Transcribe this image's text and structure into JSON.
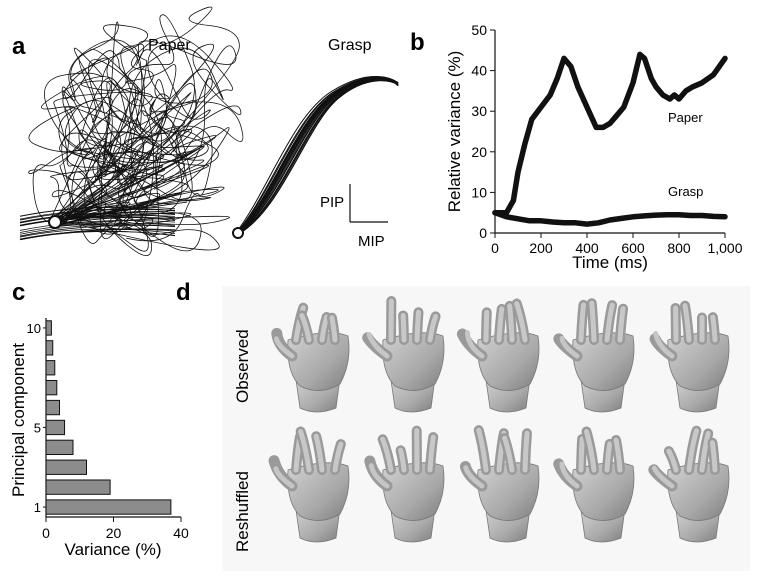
{
  "panels": {
    "a": {
      "letter": "a",
      "left_title": "Paper",
      "right_title": "Grasp",
      "scale_y_label": "PIP",
      "scale_x_label": "MIP"
    },
    "b": {
      "letter": "b"
    },
    "c": {
      "letter": "c"
    },
    "d": {
      "letter": "d",
      "row_labels": [
        "Observed",
        "Reshuffled"
      ],
      "columns": 5
    }
  },
  "chart_data": [
    {
      "panel": "b",
      "type": "line",
      "xlabel": "Time (ms)",
      "ylabel": "Relative variance (%)",
      "xlim": [
        0,
        1000
      ],
      "ylim": [
        0,
        50
      ],
      "xticks": [
        0,
        200,
        400,
        600,
        800,
        1000
      ],
      "xtick_labels": [
        "0",
        "200",
        "400",
        "600",
        "800",
        "1,000"
      ],
      "yticks": [
        0,
        10,
        20,
        30,
        40,
        50
      ],
      "grid": false,
      "series": [
        {
          "name": "Paper",
          "x": [
            0,
            50,
            80,
            100,
            130,
            160,
            200,
            240,
            270,
            300,
            330,
            360,
            400,
            440,
            470,
            500,
            530,
            560,
            600,
            630,
            650,
            680,
            700,
            730,
            760,
            780,
            800,
            830,
            860,
            900,
            950,
            1000
          ],
          "y": [
            5,
            5,
            8,
            15,
            22,
            28,
            31,
            34,
            38,
            43,
            41,
            36,
            31,
            26,
            26,
            27,
            29,
            31,
            37,
            44,
            43,
            38,
            36,
            34,
            33,
            34,
            33,
            35,
            36,
            37,
            39,
            43
          ]
        },
        {
          "name": "Grasp",
          "x": [
            0,
            50,
            100,
            150,
            200,
            250,
            300,
            350,
            400,
            450,
            500,
            550,
            600,
            650,
            700,
            750,
            800,
            850,
            900,
            950,
            1000
          ],
          "y": [
            5,
            4,
            3.5,
            3,
            3,
            2.7,
            2.5,
            2.5,
            2.2,
            2.5,
            3.2,
            3.6,
            4,
            4.2,
            4.4,
            4.5,
            4.5,
            4.3,
            4.3,
            4.1,
            4
          ]
        }
      ]
    },
    {
      "panel": "c",
      "type": "bar",
      "orientation": "horizontal",
      "xlabel": "Variance (%)",
      "ylabel": "Principal component",
      "xlim": [
        0,
        40
      ],
      "xticks": [
        0,
        20,
        40
      ],
      "ytick_labels": [
        "1",
        "5",
        "10"
      ],
      "categories": [
        1,
        2,
        3,
        4,
        5,
        6,
        7,
        8,
        9,
        10
      ],
      "values": [
        37,
        19,
        12,
        8,
        5.5,
        4,
        3.2,
        2.6,
        2,
        1.6
      ],
      "grid": false
    }
  ]
}
